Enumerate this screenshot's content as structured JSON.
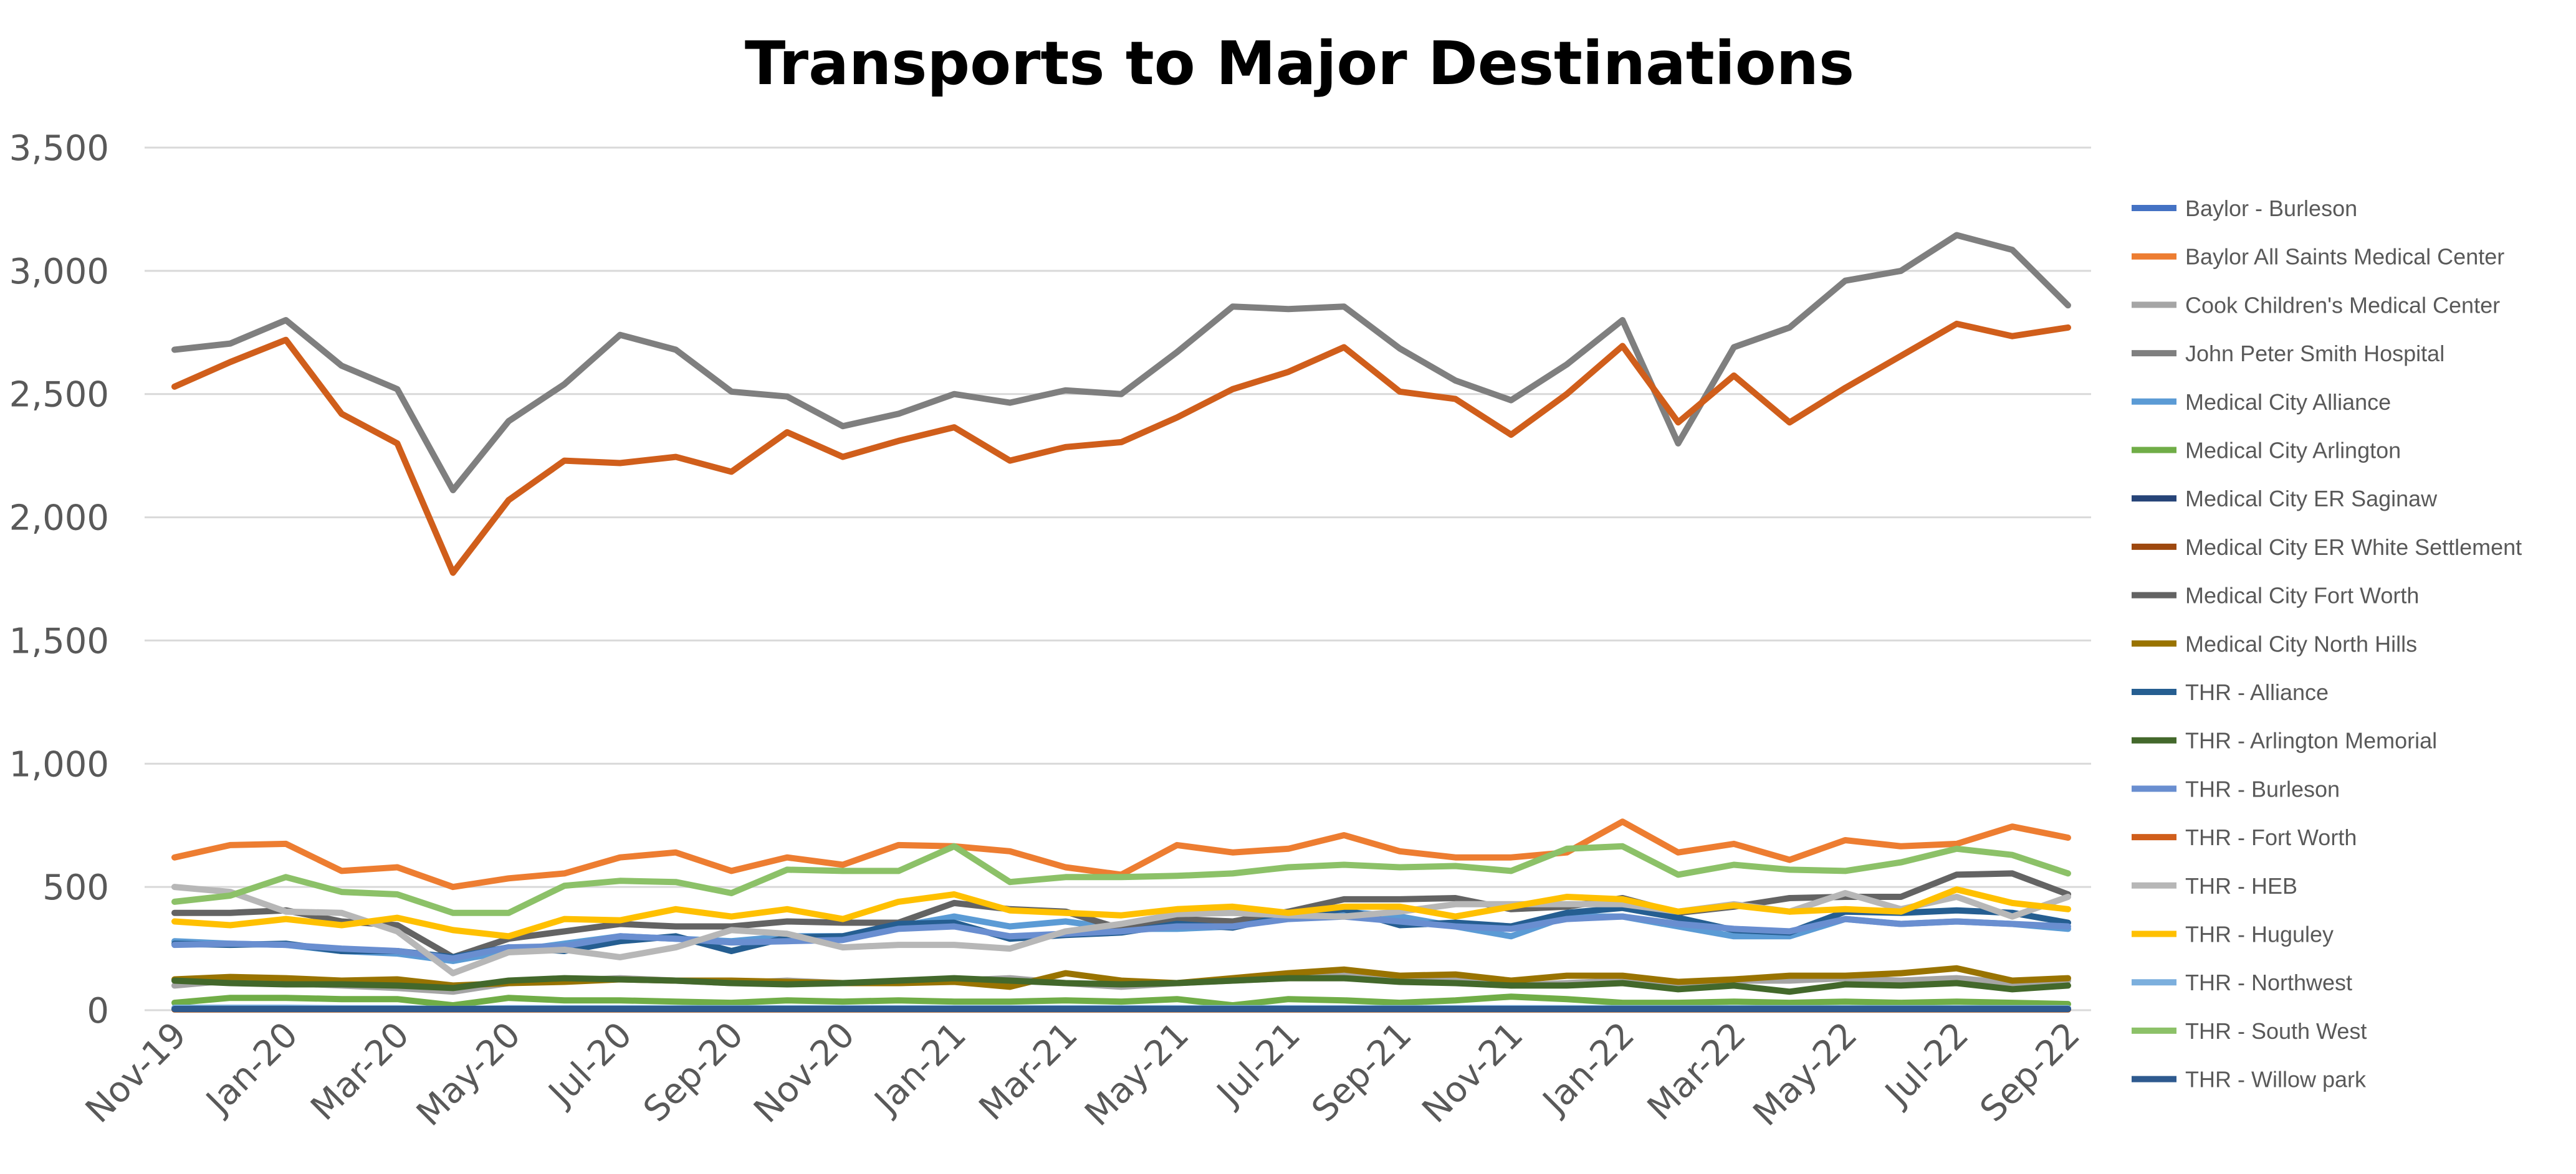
{
  "chart_data": {
    "type": "line",
    "title": "Transports to Major Destinations",
    "xlabel": "",
    "ylabel": "",
    "ylim": [
      0,
      3500
    ],
    "yticks": [
      0,
      500,
      1000,
      1500,
      2000,
      2500,
      3000,
      3500
    ],
    "ytick_labels": [
      "0",
      "500",
      "1,000",
      "1,500",
      "2,000",
      "2,500",
      "3,000",
      "3,500"
    ],
    "grid": true,
    "legend_position": "right",
    "categories": [
      "Nov-19",
      "Dec-19",
      "Jan-20",
      "Feb-20",
      "Mar-20",
      "Apr-20",
      "May-20",
      "Jun-20",
      "Jul-20",
      "Aug-20",
      "Sep-20",
      "Oct-20",
      "Nov-20",
      "Dec-20",
      "Jan-21",
      "Feb-21",
      "Mar-21",
      "Apr-21",
      "May-21",
      "Jun-21",
      "Jul-21",
      "Aug-21",
      "Sep-21",
      "Oct-21",
      "Nov-21",
      "Dec-21",
      "Jan-22",
      "Feb-22",
      "Mar-22",
      "Apr-22",
      "May-22",
      "Jun-22",
      "Jul-22",
      "Aug-22",
      "Sep-22"
    ],
    "xtick_labels": [
      "Nov-19",
      "Jan-20",
      "Mar-20",
      "May-20",
      "Jul-20",
      "Sep-20",
      "Nov-20",
      "Jan-21",
      "Mar-21",
      "May-21",
      "Jul-21",
      "Sep-21",
      "Nov-21",
      "Jan-22",
      "Mar-22",
      "May-22",
      "Jul-22",
      "Sep-22"
    ],
    "series": [
      {
        "name": "Baylor - Burleson",
        "color": "#4472c4",
        "values": [
          5,
          5,
          5,
          5,
          5,
          5,
          5,
          5,
          5,
          5,
          5,
          5,
          5,
          5,
          5,
          5,
          5,
          5,
          5,
          5,
          5,
          5,
          5,
          5,
          5,
          5,
          5,
          5,
          5,
          5,
          5,
          5,
          5,
          5,
          5
        ]
      },
      {
        "name": "Baylor All Saints Medical Center",
        "color": "#ed7d31",
        "values": [
          620,
          670,
          675,
          565,
          580,
          500,
          535,
          555,
          620,
          640,
          565,
          620,
          590,
          670,
          665,
          645,
          580,
          550,
          670,
          640,
          655,
          710,
          645,
          620,
          620,
          640,
          765,
          640,
          675,
          610,
          690,
          665,
          675,
          745,
          700
        ]
      },
      {
        "name": "Cook Children's Medical Center",
        "color": "#a5a5a5",
        "values": [
          100,
          120,
          110,
          100,
          90,
          75,
          110,
          120,
          130,
          120,
          110,
          120,
          110,
          110,
          120,
          130,
          110,
          95,
          110,
          120,
          130,
          140,
          130,
          120,
          100,
          110,
          120,
          110,
          120,
          120,
          130,
          120,
          130,
          110,
          120
        ]
      },
      {
        "name": "John Peter Smith Hospital",
        "color": "#7f7f7f",
        "values": [
          2680,
          2705,
          2800,
          2615,
          2520,
          2110,
          2390,
          2540,
          2740,
          2680,
          2510,
          2490,
          2370,
          2420,
          2500,
          2465,
          2515,
          2500,
          2670,
          2855,
          2845,
          2855,
          2685,
          2555,
          2475,
          2620,
          2800,
          2300,
          2690,
          2770,
          2960,
          3000,
          3145,
          3085,
          2860
        ]
      },
      {
        "name": "Medical City Alliance",
        "color": "#5b9bd5",
        "values": [
          280,
          270,
          265,
          240,
          230,
          200,
          240,
          270,
          300,
          290,
          280,
          300,
          300,
          340,
          380,
          340,
          360,
          330,
          330,
          340,
          380,
          400,
          380,
          340,
          300,
          380,
          380,
          340,
          300,
          300,
          370,
          350,
          360,
          350,
          330
        ]
      },
      {
        "name": "Medical City Arlington",
        "color": "#70ad47",
        "values": [
          30,
          50,
          50,
          45,
          45,
          20,
          50,
          40,
          40,
          35,
          30,
          40,
          35,
          40,
          35,
          35,
          40,
          35,
          45,
          20,
          45,
          40,
          30,
          40,
          55,
          45,
          30,
          30,
          35,
          30,
          35,
          30,
          35,
          30,
          25
        ]
      },
      {
        "name": "Medical City ER Saginaw",
        "color": "#264478",
        "values": [
          5,
          8,
          8,
          5,
          5,
          5,
          5,
          5,
          5,
          5,
          5,
          5,
          5,
          5,
          5,
          5,
          5,
          5,
          5,
          5,
          5,
          5,
          5,
          5,
          5,
          5,
          5,
          5,
          5,
          5,
          5,
          5,
          5,
          5,
          5
        ]
      },
      {
        "name": "Medical City ER White Settlement",
        "color": "#9e480e",
        "values": [
          3,
          3,
          3,
          3,
          3,
          3,
          3,
          3,
          3,
          3,
          3,
          3,
          3,
          3,
          3,
          3,
          3,
          3,
          3,
          3,
          3,
          3,
          3,
          3,
          3,
          3,
          3,
          3,
          3,
          3,
          3,
          3,
          3,
          3,
          3
        ]
      },
      {
        "name": "Medical City Fort Worth",
        "color": "#636363",
        "values": [
          395,
          395,
          405,
          360,
          345,
          215,
          290,
          320,
          350,
          340,
          340,
          360,
          355,
          355,
          435,
          410,
          400,
          330,
          370,
          360,
          400,
          450,
          450,
          455,
          410,
          420,
          455,
          395,
          420,
          455,
          460,
          460,
          550,
          555,
          470
        ]
      },
      {
        "name": "Medical City North Hills",
        "color": "#997300",
        "values": [
          125,
          135,
          130,
          120,
          125,
          100,
          110,
          115,
          125,
          120,
          120,
          115,
          110,
          110,
          115,
          95,
          150,
          120,
          110,
          130,
          150,
          165,
          140,
          145,
          120,
          140,
          140,
          115,
          125,
          140,
          140,
          150,
          170,
          120,
          130
        ]
      },
      {
        "name": "THR  - Alliance",
        "color": "#255e91",
        "values": [
          270,
          265,
          270,
          240,
          240,
          215,
          255,
          240,
          280,
          300,
          240,
          295,
          300,
          350,
          355,
          290,
          305,
          315,
          350,
          335,
          385,
          410,
          345,
          355,
          340,
          395,
          415,
          375,
          325,
          315,
          400,
          395,
          405,
          395,
          355
        ]
      },
      {
        "name": "THR - Arlington Memorial",
        "color": "#43682b",
        "values": [
          120,
          110,
          105,
          105,
          100,
          90,
          120,
          130,
          125,
          120,
          110,
          105,
          110,
          120,
          130,
          120,
          110,
          105,
          110,
          120,
          130,
          130,
          115,
          110,
          100,
          100,
          110,
          85,
          100,
          75,
          105,
          100,
          110,
          85,
          100
        ]
      },
      {
        "name": "THR - Burleson",
        "color": "#698ed0",
        "values": [
          265,
          270,
          265,
          250,
          240,
          210,
          255,
          260,
          300,
          290,
          275,
          280,
          285,
          330,
          340,
          300,
          310,
          320,
          340,
          340,
          370,
          380,
          360,
          340,
          330,
          370,
          380,
          350,
          330,
          320,
          370,
          350,
          360,
          350,
          340
        ]
      },
      {
        "name": "THR - Fort Worth",
        "color": "#d05e1b",
        "values": [
          2530,
          2630,
          2720,
          2420,
          2300,
          1775,
          2070,
          2230,
          2220,
          2245,
          2185,
          2345,
          2245,
          2310,
          2365,
          2230,
          2285,
          2305,
          2405,
          2520,
          2590,
          2690,
          2510,
          2480,
          2335,
          2500,
          2695,
          2385,
          2575,
          2385,
          2525,
          2655,
          2785,
          2735,
          2770
        ]
      },
      {
        "name": "THR - HEB",
        "color": "#b7b7b7",
        "values": [
          500,
          480,
          400,
          395,
          320,
          150,
          235,
          245,
          215,
          255,
          325,
          310,
          255,
          265,
          265,
          250,
          320,
          350,
          390,
          395,
          385,
          380,
          400,
          430,
          430,
          430,
          430,
          400,
          430,
          400,
          475,
          410,
          460,
          380,
          460
        ]
      },
      {
        "name": "THR - Huguley",
        "color": "#ffc000",
        "values": [
          360,
          345,
          370,
          345,
          375,
          325,
          300,
          370,
          365,
          410,
          380,
          410,
          370,
          440,
          470,
          405,
          395,
          385,
          410,
          420,
          395,
          420,
          420,
          380,
          420,
          460,
          450,
          400,
          425,
          400,
          410,
          400,
          490,
          435,
          410
        ]
      },
      {
        "name": "THR - Northwest",
        "color": "#7cafdd",
        "values": [
          10,
          10,
          10,
          8,
          8,
          5,
          8,
          8,
          8,
          8,
          8,
          8,
          8,
          8,
          8,
          8,
          8,
          8,
          8,
          8,
          8,
          8,
          8,
          8,
          8,
          8,
          8,
          8,
          8,
          8,
          8,
          8,
          8,
          8,
          8
        ]
      },
      {
        "name": "THR - South West",
        "color": "#8cc168",
        "values": [
          440,
          465,
          540,
          480,
          470,
          395,
          395,
          505,
          525,
          520,
          475,
          570,
          565,
          565,
          665,
          520,
          540,
          540,
          545,
          555,
          580,
          590,
          580,
          585,
          565,
          655,
          665,
          550,
          590,
          570,
          565,
          600,
          655,
          630,
          555
        ]
      },
      {
        "name": "THR - Willow park",
        "color": "#2e5a8f",
        "values": [
          5,
          5,
          5,
          5,
          5,
          5,
          5,
          5,
          5,
          5,
          5,
          5,
          5,
          5,
          5,
          5,
          5,
          5,
          5,
          5,
          5,
          5,
          5,
          5,
          5,
          5,
          5,
          5,
          5,
          5,
          5,
          5,
          5,
          5,
          5
        ]
      }
    ]
  }
}
